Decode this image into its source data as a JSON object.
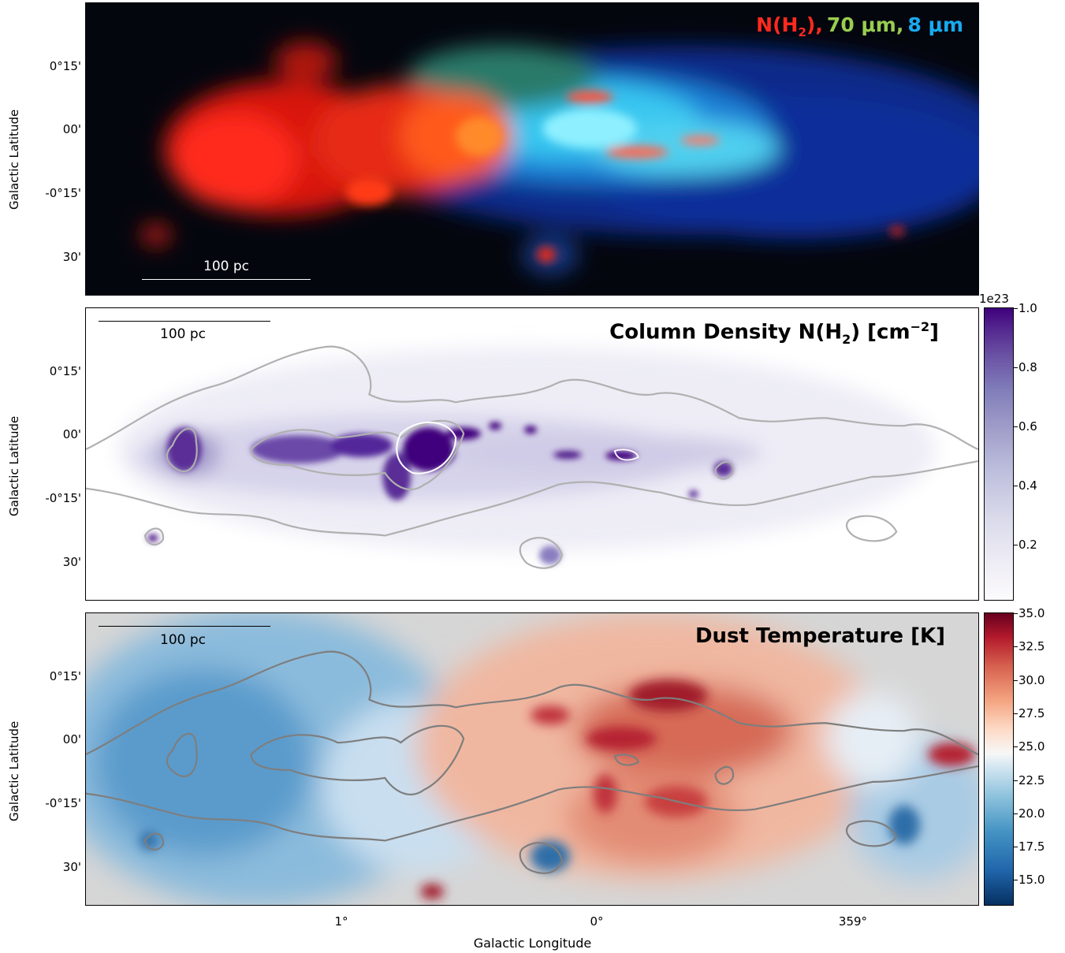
{
  "axes": {
    "ylabel": "Galactic Latitude",
    "xlabel": "Galactic Longitude",
    "yticks": [
      "0°15'",
      "00'",
      "-0°15'",
      "30'"
    ],
    "xticks": [
      "1°",
      "0°",
      "359°"
    ]
  },
  "panel1": {
    "legend": {
      "c1": "N(H",
      "c1sub": "2",
      "c1end": "),",
      "c2": "70 μm,",
      "c3": "8 μm"
    },
    "legend_colors": {
      "c1": "#ff2a1e",
      "c2": "#9acd50",
      "c3": "#18aaf0"
    },
    "scalebar": "100 pc"
  },
  "panel2": {
    "title_a": "Column Density N(H",
    "title_sub": "2",
    "title_b": ") [cm",
    "title_sup": "−2",
    "title_c": "]",
    "scalebar": "100 pc",
    "colorbar": {
      "exponent": "1e23",
      "ticks": [
        "1.0",
        "0.8",
        "0.6",
        "0.4",
        "0.2"
      ],
      "cmap": "Purples"
    }
  },
  "panel3": {
    "title": "Dust Temperature [K]",
    "scalebar": "100 pc",
    "colorbar": {
      "ticks": [
        "35.0",
        "32.5",
        "30.0",
        "27.5",
        "25.0",
        "22.5",
        "20.0",
        "17.5",
        "15.0"
      ],
      "cmap": "RdBu_r"
    }
  }
}
